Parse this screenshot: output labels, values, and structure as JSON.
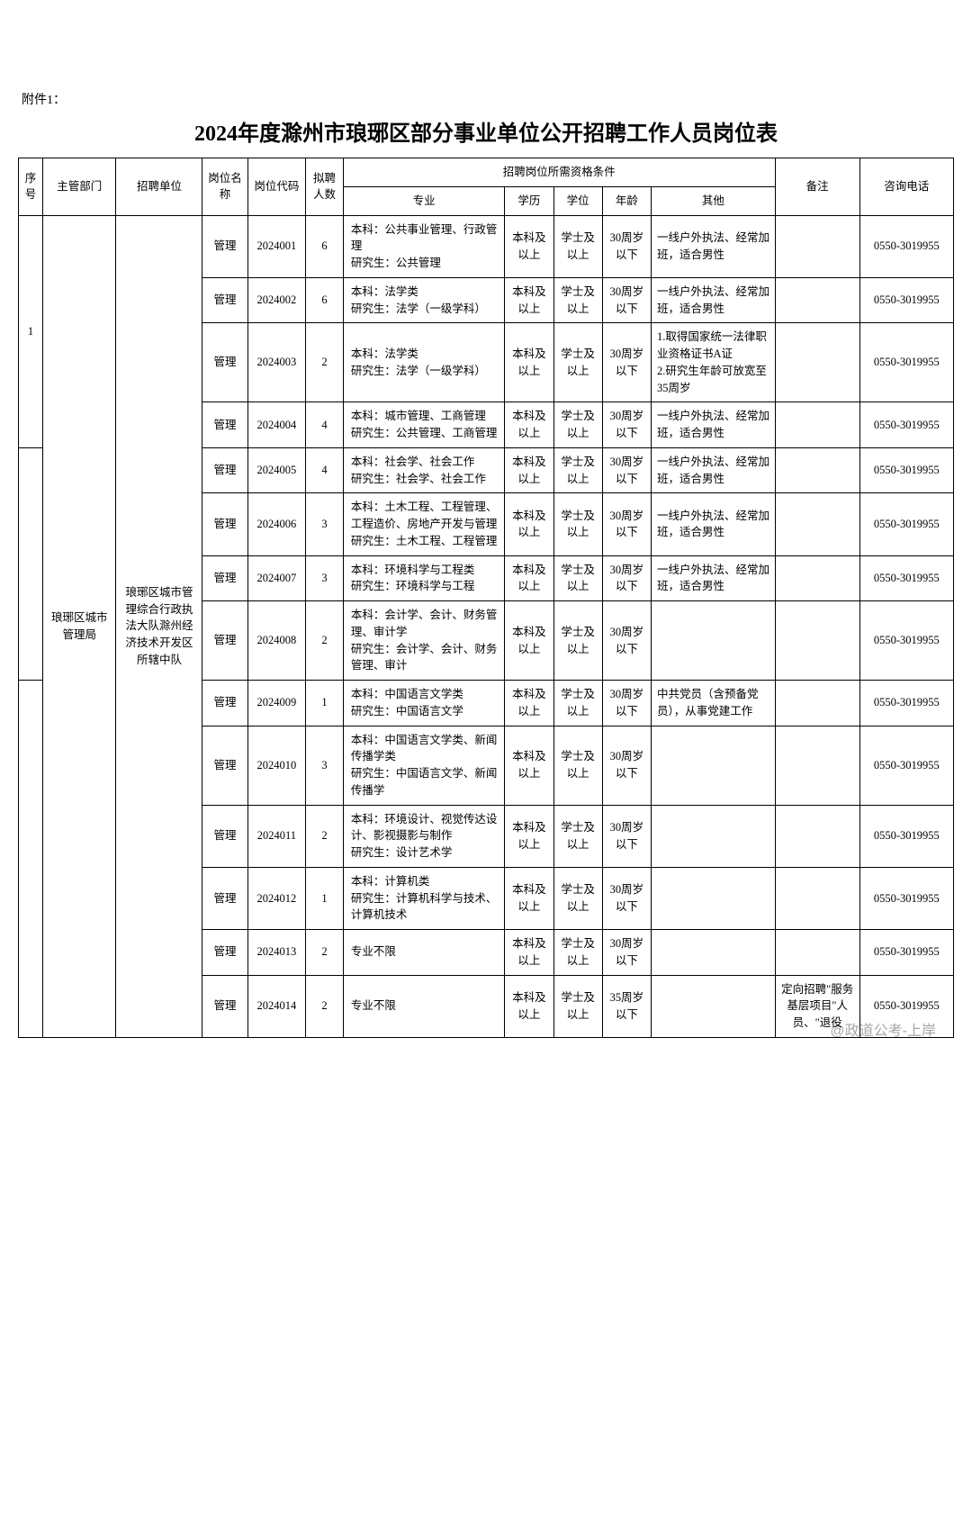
{
  "attachment_label": "附件1：",
  "title": "2024年度滁州市琅琊区部分事业单位公开招聘工作人员岗位表",
  "headers": {
    "seq": "序号",
    "dept": "主管部门",
    "unit": "招聘单位",
    "position_name": "岗位名称",
    "position_code": "岗位代码",
    "count": "拟聘人数",
    "qual_group": "招聘岗位所需资格条件",
    "major": "专业",
    "education": "学历",
    "degree": "学位",
    "age": "年龄",
    "other": "其他",
    "note": "备注",
    "phone": "咨询电话"
  },
  "seq_1": "1",
  "dept": "琅琊区城市管理局",
  "unit": "琅琊区城市管理综合行政执法大队滁州经济技术开发区所辖中队",
  "common": {
    "pname": "管理",
    "edu": "本科及以上",
    "deg": "学士及以上",
    "age30": "30周岁以下",
    "age35": "35周岁以下",
    "other_std": "一线户外执法、经常加班，适合男性",
    "phone": "0550-3019955"
  },
  "rows": [
    {
      "code": "2024001",
      "count": "6",
      "major": "本科：公共事业管理、行政管理\n研究生：公共管理",
      "age": "30",
      "other": "std",
      "note": ""
    },
    {
      "code": "2024002",
      "count": "6",
      "major": "本科：法学类\n研究生：法学（一级学科）",
      "age": "30",
      "other": "std",
      "note": ""
    },
    {
      "code": "2024003",
      "count": "2",
      "major": "本科：法学类\n研究生：法学（一级学科）",
      "age": "30",
      "other_text": "1.取得国家统一法律职业资格证书A证\n2.研究生年龄可放宽至35周岁",
      "note": ""
    },
    {
      "code": "2024004",
      "count": "4",
      "major": "本科：城市管理、工商管理\n研究生：公共管理、工商管理",
      "age": "30",
      "other": "std",
      "note": ""
    },
    {
      "code": "2024005",
      "count": "4",
      "major": "本科：社会学、社会工作\n研究生：社会学、社会工作",
      "age": "30",
      "other": "std",
      "note": ""
    },
    {
      "code": "2024006",
      "count": "3",
      "major": "本科：土木工程、工程管理、工程造价、房地产开发与管理\n研究生：土木工程、工程管理",
      "age": "30",
      "other": "std",
      "note": ""
    },
    {
      "code": "2024007",
      "count": "3",
      "major": "本科：环境科学与工程类\n研究生：环境科学与工程",
      "age": "30",
      "other": "std",
      "note": ""
    },
    {
      "code": "2024008",
      "count": "2",
      "major": "本科：会计学、会计、财务管理、审计学\n研究生：会计学、会计、财务管理、审计",
      "age": "30",
      "other_text": "",
      "note": ""
    },
    {
      "code": "2024009",
      "count": "1",
      "major": "本科：中国语言文学类\n研究生：中国语言文学",
      "age": "30",
      "other_text": "中共党员（含预备党员），从事党建工作",
      "note": ""
    },
    {
      "code": "2024010",
      "count": "3",
      "major": "本科：中国语言文学类、新闻传播学类\n研究生：中国语言文学、新闻传播学",
      "age": "30",
      "other_text": "",
      "note": ""
    },
    {
      "code": "2024011",
      "count": "2",
      "major": "本科：环境设计、视觉传达设计、影视摄影与制作\n研究生：设计艺术学",
      "age": "30",
      "other_text": "",
      "note": ""
    },
    {
      "code": "2024012",
      "count": "1",
      "major": "本科：计算机类\n研究生：计算机科学与技术、计算机技术",
      "age": "30",
      "other_text": "",
      "note": ""
    },
    {
      "code": "2024013",
      "count": "2",
      "major": "专业不限",
      "age": "30",
      "other_text": "",
      "note": ""
    },
    {
      "code": "2024014",
      "count": "2",
      "major": "专业不限",
      "age": "35",
      "other_text": "",
      "note": "定向招聘\"服务基层项目\"人员、\"退役"
    }
  ],
  "watermark": "@政道公考-上岸",
  "style": {
    "font_family": "SimSun",
    "title_fontsize": 24,
    "body_fontsize": 13,
    "cell_fontsize": 12.5,
    "border_color": "#000000",
    "background": "#ffffff",
    "text_color": "#000000",
    "watermark_color": "rgba(0,0,0,0.35)"
  }
}
